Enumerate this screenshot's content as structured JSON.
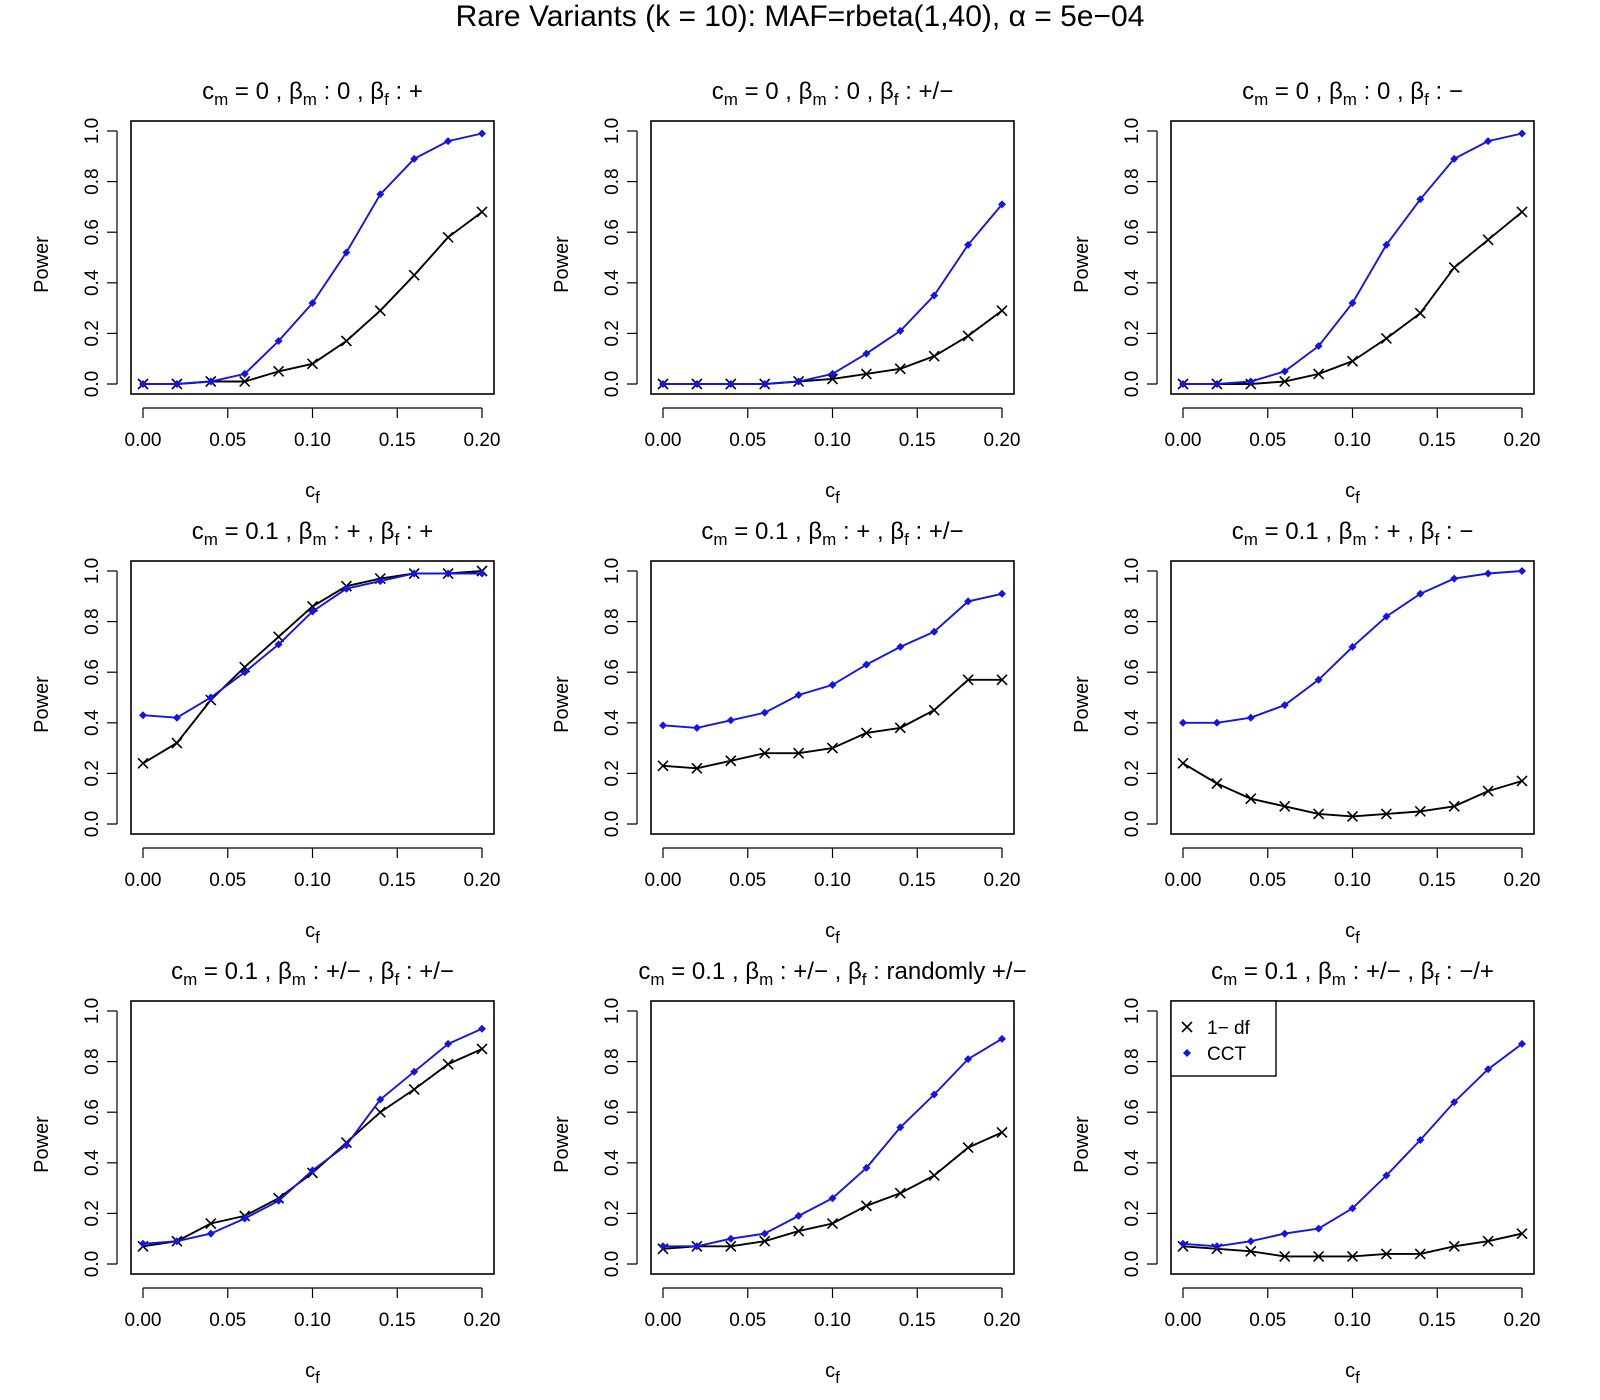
{
  "figure_title": "Rare Variants (k = 10): MAF=rbeta(1,40),  α = 5e−04",
  "colors": {
    "df1": "#000000",
    "cct": "#1414e6"
  },
  "legend": {
    "df1_symbol": "×",
    "df1_label": "1− df",
    "cct_symbol": "◆",
    "cct_label": "CCT"
  },
  "chart_data": [
    {
      "type": "line",
      "title": "c_m = 0 , β_m : 0 , β_f : +",
      "title_parts": {
        "cm": "0",
        "bm": "0",
        "bf": "+"
      },
      "xlabel": "c_f",
      "ylabel": "Power",
      "xlim": [
        0,
        0.2
      ],
      "ylim": [
        0,
        1
      ],
      "x": [
        0,
        0.02,
        0.04,
        0.06,
        0.08,
        0.1,
        0.12,
        0.14,
        0.16,
        0.18,
        0.2
      ],
      "series": [
        {
          "name": "1− df",
          "values": [
            0.0,
            0.0,
            0.01,
            0.01,
            0.05,
            0.08,
            0.17,
            0.29,
            0.43,
            0.58,
            0.68
          ]
        },
        {
          "name": "CCT",
          "values": [
            0.0,
            0.0,
            0.01,
            0.04,
            0.17,
            0.32,
            0.52,
            0.75,
            0.89,
            0.96,
            0.99
          ]
        }
      ]
    },
    {
      "type": "line",
      "title": "c_m = 0 , β_m : 0 , β_f : +/−",
      "title_parts": {
        "cm": "0",
        "bm": "0",
        "bf": "+/−"
      },
      "xlabel": "c_f",
      "ylabel": "Power",
      "xlim": [
        0,
        0.2
      ],
      "ylim": [
        0,
        1
      ],
      "x": [
        0,
        0.02,
        0.04,
        0.06,
        0.08,
        0.1,
        0.12,
        0.14,
        0.16,
        0.18,
        0.2
      ],
      "series": [
        {
          "name": "1− df",
          "values": [
            0.0,
            0.0,
            0.0,
            0.0,
            0.01,
            0.02,
            0.04,
            0.06,
            0.11,
            0.19,
            0.29
          ]
        },
        {
          "name": "CCT",
          "values": [
            0.0,
            0.0,
            0.0,
            0.0,
            0.01,
            0.04,
            0.12,
            0.21,
            0.35,
            0.55,
            0.71
          ]
        }
      ]
    },
    {
      "type": "line",
      "title": "c_m = 0 , β_m : 0 , β_f : −",
      "title_parts": {
        "cm": "0",
        "bm": "0",
        "bf": "−"
      },
      "xlabel": "c_f",
      "ylabel": "Power",
      "xlim": [
        0,
        0.2
      ],
      "ylim": [
        0,
        1
      ],
      "x": [
        0,
        0.02,
        0.04,
        0.06,
        0.08,
        0.1,
        0.12,
        0.14,
        0.16,
        0.18,
        0.2
      ],
      "series": [
        {
          "name": "1− df",
          "values": [
            0.0,
            0.0,
            0.0,
            0.01,
            0.04,
            0.09,
            0.18,
            0.28,
            0.46,
            0.57,
            0.68
          ]
        },
        {
          "name": "CCT",
          "values": [
            0.0,
            0.0,
            0.01,
            0.05,
            0.15,
            0.32,
            0.55,
            0.73,
            0.89,
            0.96,
            0.99
          ]
        }
      ]
    },
    {
      "type": "line",
      "title": "c_m = 0.1 , β_m : + , β_f : +",
      "title_parts": {
        "cm": "0.1",
        "bm": "+",
        "bf": "+"
      },
      "xlabel": "c_f",
      "ylabel": "Power",
      "xlim": [
        0,
        0.2
      ],
      "ylim": [
        0,
        1
      ],
      "x": [
        0,
        0.02,
        0.04,
        0.06,
        0.08,
        0.1,
        0.12,
        0.14,
        0.16,
        0.18,
        0.2
      ],
      "series": [
        {
          "name": "1− df",
          "values": [
            0.24,
            0.32,
            0.49,
            0.62,
            0.74,
            0.86,
            0.94,
            0.97,
            0.99,
            0.99,
            1.0
          ]
        },
        {
          "name": "CCT",
          "values": [
            0.43,
            0.42,
            0.5,
            0.6,
            0.71,
            0.84,
            0.93,
            0.96,
            0.99,
            0.99,
            0.99
          ]
        }
      ]
    },
    {
      "type": "line",
      "title": "c_m = 0.1 , β_m : + , β_f : +/−",
      "title_parts": {
        "cm": "0.1",
        "bm": "+",
        "bf": "+/−"
      },
      "xlabel": "c_f",
      "ylabel": "Power",
      "xlim": [
        0,
        0.2
      ],
      "ylim": [
        0,
        1
      ],
      "x": [
        0,
        0.02,
        0.04,
        0.06,
        0.08,
        0.1,
        0.12,
        0.14,
        0.16,
        0.18,
        0.2
      ],
      "series": [
        {
          "name": "1− df",
          "values": [
            0.23,
            0.22,
            0.25,
            0.28,
            0.28,
            0.3,
            0.36,
            0.38,
            0.45,
            0.57,
            0.57
          ]
        },
        {
          "name": "CCT",
          "values": [
            0.39,
            0.38,
            0.41,
            0.44,
            0.51,
            0.55,
            0.63,
            0.7,
            0.76,
            0.88,
            0.91
          ]
        }
      ]
    },
    {
      "type": "line",
      "title": "c_m = 0.1 , β_m : + , β_f : −",
      "title_parts": {
        "cm": "0.1",
        "bm": "+",
        "bf": "−"
      },
      "xlabel": "c_f",
      "ylabel": "Power",
      "xlim": [
        0,
        0.2
      ],
      "ylim": [
        0,
        1
      ],
      "x": [
        0,
        0.02,
        0.04,
        0.06,
        0.08,
        0.1,
        0.12,
        0.14,
        0.16,
        0.18,
        0.2
      ],
      "series": [
        {
          "name": "1− df",
          "values": [
            0.24,
            0.16,
            0.1,
            0.07,
            0.04,
            0.03,
            0.04,
            0.05,
            0.07,
            0.13,
            0.17
          ]
        },
        {
          "name": "CCT",
          "values": [
            0.4,
            0.4,
            0.42,
            0.47,
            0.57,
            0.7,
            0.82,
            0.91,
            0.97,
            0.99,
            1.0
          ]
        }
      ]
    },
    {
      "type": "line",
      "title": "c_m = 0.1 , β_m : +/− , β_f : +/−",
      "title_parts": {
        "cm": "0.1",
        "bm": "+/−",
        "bf": "+/−"
      },
      "xlabel": "c_f",
      "ylabel": "Power",
      "xlim": [
        0,
        0.2
      ],
      "ylim": [
        0,
        1
      ],
      "x": [
        0,
        0.02,
        0.04,
        0.06,
        0.08,
        0.1,
        0.12,
        0.14,
        0.16,
        0.18,
        0.2
      ],
      "series": [
        {
          "name": "1− df",
          "values": [
            0.07,
            0.09,
            0.16,
            0.19,
            0.26,
            0.36,
            0.48,
            0.6,
            0.69,
            0.79,
            0.85
          ]
        },
        {
          "name": "CCT",
          "values": [
            0.08,
            0.09,
            0.12,
            0.18,
            0.25,
            0.37,
            0.47,
            0.65,
            0.76,
            0.87,
            0.93
          ]
        }
      ]
    },
    {
      "type": "line",
      "title": "c_m = 0.1 , β_m : +/− , β_f : randomly +/−",
      "title_parts": {
        "cm": "0.1",
        "bm": "+/−",
        "bf": "randomly +/−"
      },
      "xlabel": "c_f",
      "ylabel": "Power",
      "xlim": [
        0,
        0.2
      ],
      "ylim": [
        0,
        1
      ],
      "x": [
        0,
        0.02,
        0.04,
        0.06,
        0.08,
        0.1,
        0.12,
        0.14,
        0.16,
        0.18,
        0.2
      ],
      "series": [
        {
          "name": "1− df",
          "values": [
            0.06,
            0.07,
            0.07,
            0.09,
            0.13,
            0.16,
            0.23,
            0.28,
            0.35,
            0.46,
            0.52
          ]
        },
        {
          "name": "CCT",
          "values": [
            0.07,
            0.07,
            0.1,
            0.12,
            0.19,
            0.26,
            0.38,
            0.54,
            0.67,
            0.81,
            0.89
          ]
        }
      ]
    },
    {
      "type": "line",
      "title": "c_m = 0.1 , β_m : +/− , β_f : −/+",
      "title_parts": {
        "cm": "0.1",
        "bm": "+/−",
        "bf": "−/+"
      },
      "xlabel": "c_f",
      "ylabel": "Power",
      "xlim": [
        0,
        0.2
      ],
      "ylim": [
        0,
        1
      ],
      "legend": "top-left",
      "x": [
        0,
        0.02,
        0.04,
        0.06,
        0.08,
        0.1,
        0.12,
        0.14,
        0.16,
        0.18,
        0.2
      ],
      "series": [
        {
          "name": "1− df",
          "values": [
            0.07,
            0.06,
            0.05,
            0.03,
            0.03,
            0.03,
            0.04,
            0.04,
            0.07,
            0.09,
            0.12
          ]
        },
        {
          "name": "CCT",
          "values": [
            0.08,
            0.07,
            0.09,
            0.12,
            0.14,
            0.22,
            0.35,
            0.49,
            0.64,
            0.77,
            0.87
          ]
        }
      ]
    }
  ]
}
